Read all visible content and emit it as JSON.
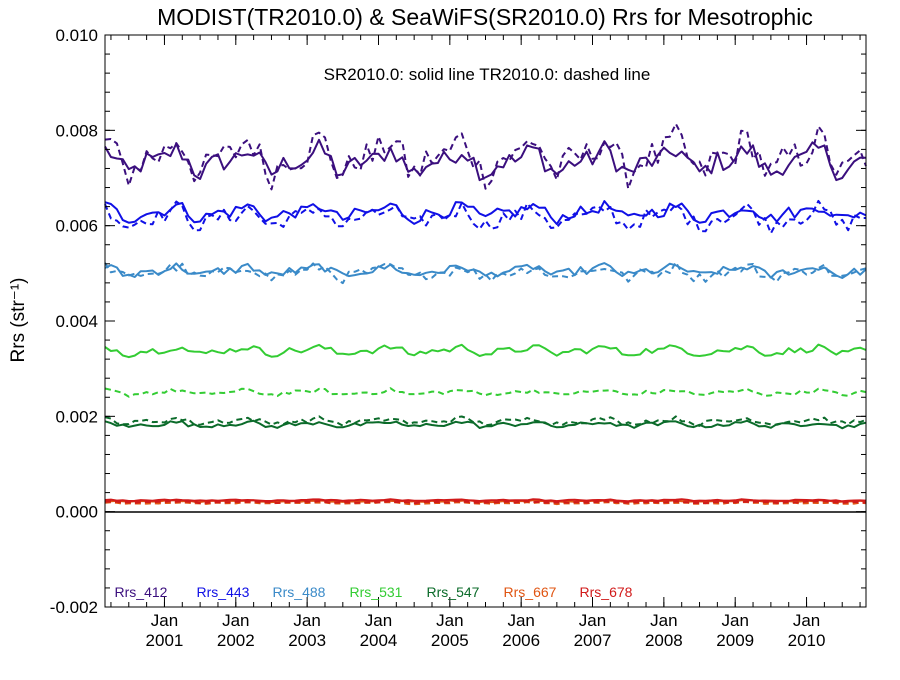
{
  "chart_data": {
    "type": "line",
    "title": "MODIST(TR2010.0) & SeaWiFS(SR2010.0)  Rrs for Mesotrophic",
    "subtitle": "SR2010.0: solid line   TR2010.0: dashed line",
    "ylabel": "Rrs (str⁻¹)",
    "xlabel": "",
    "ylim": [
      -0.002,
      0.01
    ],
    "xlim": [
      "2000-03-01",
      "2010-10-31"
    ],
    "grid": false,
    "legend_placement": "bottom-left",
    "yticks": [
      "-0.002",
      "0.000",
      "0.002",
      "0.004",
      "0.006",
      "0.008",
      "0.010"
    ],
    "xtick_month": "Jan",
    "xtick_years": [
      "2001",
      "2002",
      "2003",
      "2004",
      "2005",
      "2006",
      "2007",
      "2008",
      "2009",
      "2010"
    ],
    "zero_line": true,
    "series": [
      {
        "name": "Rrs_412",
        "color": "#3b0f7e",
        "solid_mean": 0.00735,
        "solid_amp": 0.0004,
        "dashed_mean": 0.00745,
        "dashed_amp": 0.0006
      },
      {
        "name": "Rrs_443",
        "color": "#1010e6",
        "solid_mean": 0.00628,
        "solid_amp": 0.00022,
        "dashed_mean": 0.00618,
        "dashed_amp": 0.0003
      },
      {
        "name": "Rrs_488",
        "color": "#3a8ac8",
        "solid_mean": 0.00505,
        "solid_amp": 0.00016,
        "dashed_mean": 0.00502,
        "dashed_amp": 0.0002
      },
      {
        "name": "Rrs_531",
        "color": "#33cc33",
        "solid_mean": 0.00338,
        "solid_amp": 0.00012,
        "dashed_mean": 0.0025,
        "dashed_amp": 8e-05
      },
      {
        "name": "Rrs_547",
        "color": "#0b6b2a",
        "solid_mean": 0.00183,
        "solid_amp": 8e-05,
        "dashed_mean": 0.0019,
        "dashed_amp": 9e-05
      },
      {
        "name": "Rrs_667",
        "color": "#e05512",
        "solid_mean": 0.00022,
        "solid_amp": 2e-05,
        "dashed_mean": 0.00018,
        "dashed_amp": 2e-05
      },
      {
        "name": "Rrs_678",
        "color": "#d11a1a",
        "solid_mean": 0.00024,
        "solid_amp": 2e-05,
        "dashed_mean": 0.0002,
        "dashed_amp": 2e-05
      }
    ]
  }
}
